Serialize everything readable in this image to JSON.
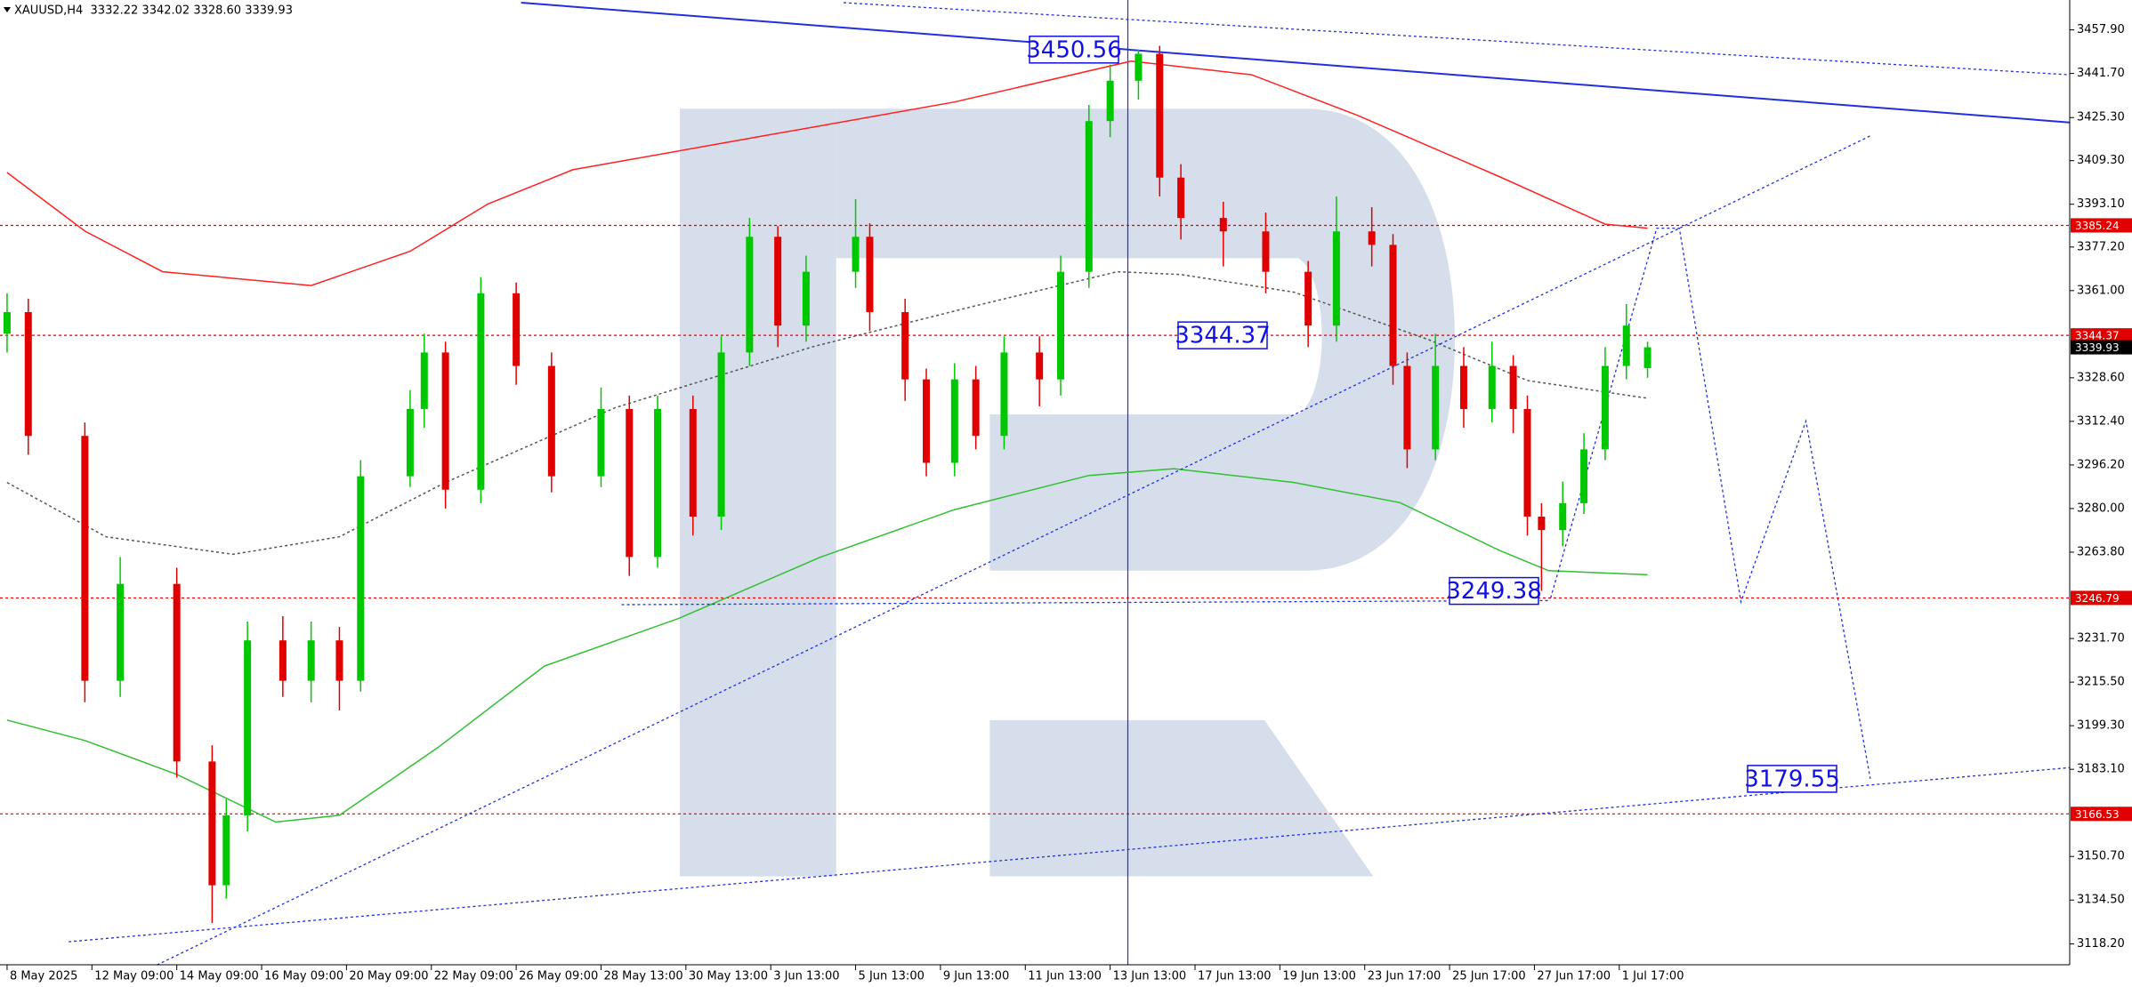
{
  "chart_data": {
    "type": "candlestick",
    "title": "XAUUSD,H4  3332.22 3342.02 3328.60 3339.93",
    "xlim": [
      -1,
      291.7
    ],
    "ylim": [
      3110.45,
      3469.0
    ],
    "up_color": "#00c800",
    "down_color": "#e00000",
    "candles": {
      "x": [
        0,
        3,
        11,
        16,
        24,
        29,
        31,
        34,
        39,
        43,
        47,
        50,
        57,
        59,
        62,
        67,
        72,
        77,
        84,
        88,
        92,
        97,
        101,
        105,
        109,
        113,
        120,
        122,
        127,
        130,
        134,
        137,
        141,
        146,
        149,
        153,
        156,
        160,
        163,
        166,
        172,
        178,
        184,
        188,
        193,
        196,
        198,
        202,
        206,
        210,
        213,
        215,
        217,
        220,
        223,
        226,
        229,
        232
      ],
      "open": [
        3345,
        3353,
        3307,
        3216,
        3252,
        3186,
        3140,
        3166,
        3231,
        3216,
        3231,
        3216,
        3292,
        3317,
        3338,
        3287,
        3360,
        3333,
        3292,
        3317,
        3262,
        3317,
        3277,
        3338,
        3381,
        3348,
        3368,
        3381,
        3353,
        3328,
        3297,
        3328,
        3307,
        3338,
        3328,
        3368,
        3424,
        3439,
        3449,
        3403,
        3388,
        3383,
        3368,
        3348,
        3383,
        3378,
        3333,
        3302,
        3333,
        3317,
        3333,
        3317,
        3277,
        3272,
        3282,
        3302,
        3333,
        3332.22
      ],
      "high": [
        3360,
        3358,
        3312,
        3262,
        3258,
        3192,
        3172,
        3238,
        3240,
        3238,
        3236,
        3298,
        3324,
        3345,
        3342,
        3366,
        3364,
        3338,
        3325,
        3322,
        3322,
        3322,
        3344,
        3388,
        3385,
        3374,
        3395,
        3386,
        3358,
        3332,
        3334,
        3333,
        3344,
        3344,
        3374,
        3430,
        3445,
        3450.56,
        3452,
        3408,
        3394,
        3390,
        3372,
        3396,
        3392,
        3382,
        3338,
        3345,
        3340,
        3342,
        3337,
        3322,
        3282,
        3290,
        3308,
        3340,
        3356,
        3342.02
      ],
      "low": [
        3338,
        3300,
        3208,
        3210,
        3180,
        3126,
        3135,
        3160,
        3210,
        3208,
        3205,
        3212,
        3288,
        3310,
        3280,
        3282,
        3326,
        3286,
        3288,
        3255,
        3258,
        3270,
        3272,
        3333,
        3340,
        3342,
        3362,
        3346,
        3320,
        3292,
        3292,
        3302,
        3302,
        3318,
        3322,
        3362,
        3418,
        3432,
        3396,
        3380,
        3370,
        3360,
        3340,
        3342,
        3370,
        3326,
        3295,
        3298,
        3310,
        3312,
        3308,
        3270,
        3249.38,
        3266,
        3278,
        3298,
        3328,
        3328.6
      ],
      "close": [
        3353,
        3307,
        3216,
        3252,
        3186,
        3140,
        3166,
        3231,
        3216,
        3231,
        3216,
        3292,
        3317,
        3338,
        3287,
        3360,
        3333,
        3292,
        3317,
        3262,
        3317,
        3277,
        3338,
        3381,
        3348,
        3368,
        3381,
        3353,
        3328,
        3297,
        3328,
        3307,
        3338,
        3328,
        3368,
        3424,
        3439,
        3449,
        3403,
        3388,
        3383,
        3368,
        3348,
        3383,
        3378,
        3333,
        3302,
        3333,
        3317,
        3333,
        3317,
        3277,
        3272,
        3282,
        3302,
        3333,
        3348,
        3339.93
      ]
    },
    "series": [
      {
        "color": "#ff2020",
        "dotted": false,
        "x": [
          0,
          11,
          22,
          43,
          57,
          68,
          80,
          107,
          134,
          159,
          176,
          191,
          211,
          226,
          232
        ],
        "values": [
          3404.9,
          3383.1,
          3368,
          3362.9,
          3375.6,
          3393.2,
          3405.9,
          3418.5,
          3431.1,
          3446.3,
          3441.2,
          3426.1,
          3403.4,
          3385.7,
          3384.2
        ]
      },
      {
        "color": "#30c030",
        "dotted": false,
        "x": [
          0,
          11,
          24,
          38,
          47,
          61,
          76,
          95,
          115,
          134,
          153,
          165,
          182,
          197,
          211,
          218,
          232
        ],
        "values": [
          3201.4,
          3193.8,
          3181.2,
          3163.5,
          3166,
          3191.3,
          3221.5,
          3239.2,
          3261.9,
          3279.6,
          3292.3,
          3294.8,
          3289.7,
          3282.2,
          3264.5,
          3256.9,
          3255.4
        ]
      },
      {
        "color": "#555555",
        "dotted": true,
        "x": [
          0,
          14,
          32,
          47,
          62,
          86,
          114,
          137,
          157,
          166,
          182,
          201,
          215,
          232
        ],
        "values": [
          3289.7,
          3269.5,
          3263,
          3269.5,
          3289.7,
          3317.5,
          3340.2,
          3355.4,
          3368,
          3367,
          3360.4,
          3342.8,
          3327.6,
          3321
        ]
      }
    ],
    "trendlines": [
      {
        "color": "#2030e0",
        "dotted": false,
        "x": [
          72.7,
          291.7
        ],
        "y": [
          3468,
          3423.5
        ]
      },
      {
        "color": "#2030e0",
        "dotted": true,
        "x": [
          118.3,
          291.7
        ],
        "y": [
          3468,
          3441.2
        ]
      },
      {
        "color": "#2030e0",
        "dotted": true,
        "x": [
          21.2,
          263.5
        ],
        "y": [
          3110.4,
          3418.5
        ]
      },
      {
        "color": "#2030e0",
        "dotted": true,
        "x": [
          8.7,
          291.7
        ],
        "y": [
          3119,
          3183.7
        ]
      },
      {
        "color": "#2030e0",
        "dotted": true,
        "x": [
          86.9,
          218.3
        ],
        "y": [
          3244.3,
          3245.8
        ]
      },
      {
        "color": "#2030e0",
        "dotted": true,
        "x": [
          218.3,
          233.3,
          236.5,
          245.2,
          254.4,
          263.5
        ],
        "y": [
          3246.8,
          3384.2,
          3384.2,
          3245.3,
          3312.5,
          3179.55
        ]
      }
    ],
    "vertical_line": 158.5,
    "price_levels": [
      {
        "value": 3385.24,
        "color": "#e00000",
        "line": true
      },
      {
        "value": 3344.37,
        "color": "#e00000",
        "line": true
      },
      {
        "value": 3339.93,
        "color": "#000000",
        "line": false
      },
      {
        "value": 3246.79,
        "color": "#e00000",
        "line": true
      },
      {
        "value": 3166.53,
        "color": "#e00000",
        "line": true
      }
    ],
    "annotations": [
      3450.56,
      3344.37,
      3249.38,
      3179.55
    ],
    "yticks": [
      {
        "value": 3457.9,
        "label": "3457.90"
      },
      {
        "value": 3441.7,
        "label": "3441.70"
      },
      {
        "value": 3425.3,
        "label": "3425.30"
      },
      {
        "value": 3409.3,
        "label": "3409.30"
      },
      {
        "value": 3393.1,
        "label": "3393.10"
      },
      {
        "value": 3377.2,
        "label": "3377.20"
      },
      {
        "value": 3361.0,
        "label": "3361.00"
      },
      {
        "value": 3328.6,
        "label": "3328.60"
      },
      {
        "value": 3312.4,
        "label": "3312.40"
      },
      {
        "value": 3296.2,
        "label": "3296.20"
      },
      {
        "value": 3280.0,
        "label": "3280.00"
      },
      {
        "value": 3263.8,
        "label": "3263.80"
      },
      {
        "value": 3231.7,
        "label": "3231.70"
      },
      {
        "value": 3215.5,
        "label": "3215.50"
      },
      {
        "value": 3199.3,
        "label": "3199.30"
      },
      {
        "value": 3183.1,
        "label": "3183.10"
      },
      {
        "value": 3150.7,
        "label": "3150.70"
      },
      {
        "value": 3134.5,
        "label": "3134.50"
      },
      {
        "value": 3118.2,
        "label": "3118.20"
      }
    ],
    "xticks": [
      {
        "value": 0,
        "label": "8 May 2025"
      },
      {
        "value": 12,
        "label": "12 May 09:00"
      },
      {
        "value": 24,
        "label": "14 May 09:00"
      },
      {
        "value": 36,
        "label": "16 May 09:00"
      },
      {
        "value": 48,
        "label": "20 May 09:00"
      },
      {
        "value": 60,
        "label": "22 May 09:00"
      },
      {
        "value": 72,
        "label": "26 May 09:00"
      },
      {
        "value": 84,
        "label": "28 May 13:00"
      },
      {
        "value": 96,
        "label": "30 May 13:00"
      },
      {
        "value": 108,
        "label": "3 Jun 13:00"
      },
      {
        "value": 120,
        "label": "5 Jun 13:00"
      },
      {
        "value": 132,
        "label": "9 Jun 13:00"
      },
      {
        "value": 144,
        "label": "11 Jun 13:00"
      },
      {
        "value": 156,
        "label": "13 Jun 13:00"
      },
      {
        "value": 168,
        "label": "17 Jun 13:00"
      },
      {
        "value": 180,
        "label": "19 Jun 13:00"
      },
      {
        "value": 192,
        "label": "23 Jun 17:00"
      },
      {
        "value": 204,
        "label": "25 Jun 17:00"
      },
      {
        "value": 216,
        "label": "27 Jun 17:00"
      },
      {
        "value": 228,
        "label": "1 Jul 17:00"
      }
    ]
  }
}
